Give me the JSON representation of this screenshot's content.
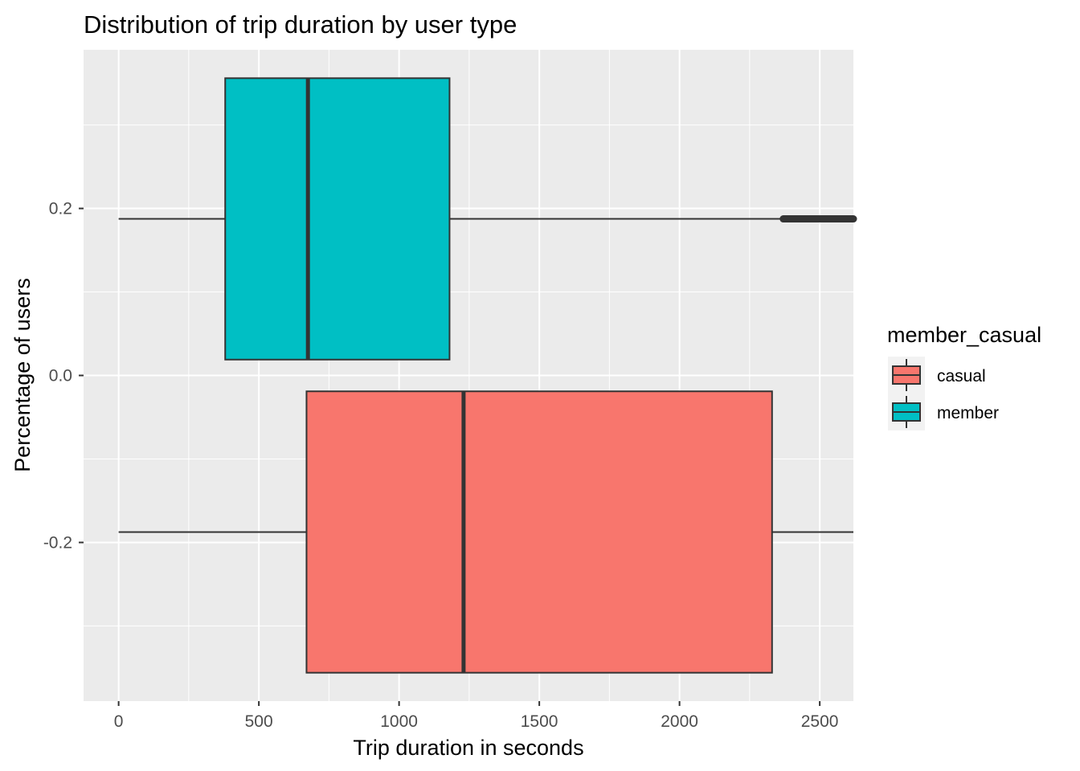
{
  "chart_data": {
    "type": "boxplot",
    "orientation": "horizontal",
    "title": "Distribution of trip duration by user type",
    "xlabel": "Trip duration in seconds",
    "ylabel": "Percentage of users",
    "xlim": [
      -125,
      2620
    ],
    "ylim": [
      -0.39,
      0.39
    ],
    "x_ticks": [
      0,
      500,
      1000,
      1500,
      2000,
      2500
    ],
    "x_tick_labels": [
      "0",
      "500",
      "1000",
      "1500",
      "2000",
      "2500"
    ],
    "y_ticks": [
      0.2,
      0.0,
      -0.2
    ],
    "y_tick_labels": [
      "0.2",
      "0.0",
      "-0.2"
    ],
    "grid": true,
    "background": "#ebebeb",
    "legend": {
      "title": "member_casual",
      "position": "right",
      "entries": [
        {
          "label": "casual",
          "color": "#f8766d"
        },
        {
          "label": "member",
          "color": "#00bfc4"
        }
      ]
    },
    "series": [
      {
        "name": "member",
        "color": "#00bfc4",
        "y_center": 0.1875,
        "y_range": [
          0.019,
          0.356
        ],
        "whisker_low": 0,
        "q1": 380,
        "median": 675,
        "q3": 1180,
        "whisker_high": 2370,
        "outliers_from": 2370,
        "outliers_to": 2620
      },
      {
        "name": "casual",
        "color": "#f8766d",
        "y_center": -0.1875,
        "y_range": [
          -0.356,
          -0.019
        ],
        "whisker_low": 0,
        "q1": 670,
        "median": 1230,
        "q3": 2330,
        "whisker_high": 2620
      }
    ]
  }
}
